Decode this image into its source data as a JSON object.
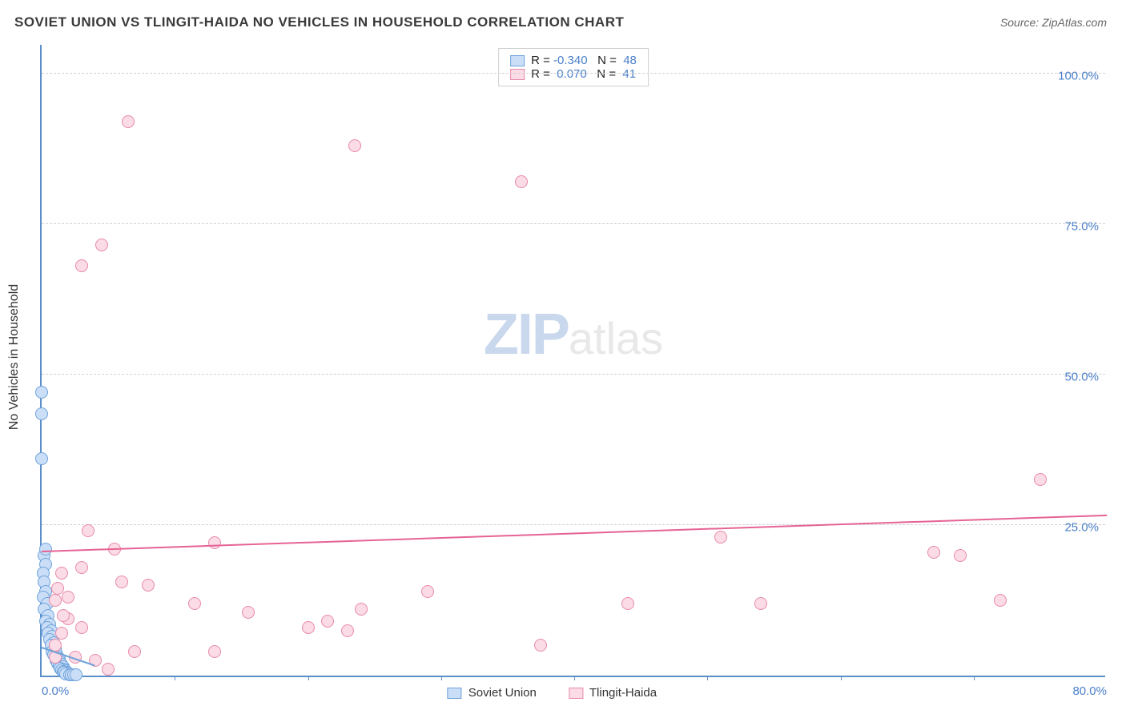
{
  "title": "SOVIET UNION VS TLINGIT-HAIDA NO VEHICLES IN HOUSEHOLD CORRELATION CHART",
  "source": "Source: ZipAtlas.com",
  "ylabel": "No Vehicles in Household",
  "watermark_zip": "ZIP",
  "watermark_atlas": "atlas",
  "chart": {
    "type": "scatter",
    "background_color": "#ffffff",
    "grid_color": "#d0d0d0",
    "axis_color": "#5a8fc9",
    "tick_label_color": "#4a7fc9",
    "xlim": [
      0,
      80
    ],
    "ylim": [
      0,
      105
    ],
    "xtick_labels": [
      "0.0%",
      "80.0%"
    ],
    "xtick_positions": [
      0,
      80
    ],
    "minor_xticks": [
      10,
      20,
      30,
      40,
      50,
      60,
      70
    ],
    "ytick_labels": [
      "25.0%",
      "50.0%",
      "75.0%",
      "100.0%"
    ],
    "ytick_positions": [
      25,
      50,
      75,
      100
    ],
    "marker_radius": 8,
    "series": [
      {
        "name": "Soviet Union",
        "fill": "#cadef7",
        "stroke": "#6fa3db",
        "r_value": "-0.340",
        "n_value": "48",
        "trend": {
          "x1": 0,
          "y1": 4.5,
          "x2": 4,
          "y2": 1.5,
          "color": "#6fa3db"
        },
        "points": [
          [
            0.0,
            47.0
          ],
          [
            0.0,
            43.5
          ],
          [
            0.0,
            36.0
          ],
          [
            0.2,
            20.0
          ],
          [
            0.3,
            18.5
          ],
          [
            0.1,
            17.0
          ],
          [
            0.2,
            15.5
          ],
          [
            0.3,
            14.0
          ],
          [
            0.1,
            13.0
          ],
          [
            0.4,
            12.0
          ],
          [
            0.2,
            11.0
          ],
          [
            0.5,
            10.0
          ],
          [
            0.3,
            9.0
          ],
          [
            0.6,
            8.5
          ],
          [
            0.4,
            8.0
          ],
          [
            0.7,
            7.5
          ],
          [
            0.5,
            7.0
          ],
          [
            0.8,
            6.5
          ],
          [
            0.6,
            6.0
          ],
          [
            0.9,
            5.5
          ],
          [
            0.7,
            5.0
          ],
          [
            1.0,
            4.5
          ],
          [
            0.8,
            4.0
          ],
          [
            1.1,
            3.8
          ],
          [
            0.9,
            3.5
          ],
          [
            1.2,
            3.2
          ],
          [
            1.0,
            3.0
          ],
          [
            1.3,
            2.8
          ],
          [
            1.1,
            2.5
          ],
          [
            1.4,
            2.3
          ],
          [
            1.2,
            2.0
          ],
          [
            1.5,
            1.8
          ],
          [
            1.3,
            1.6
          ],
          [
            1.6,
            1.4
          ],
          [
            1.4,
            1.2
          ],
          [
            1.7,
            1.0
          ],
          [
            1.5,
            0.9
          ],
          [
            1.8,
            0.8
          ],
          [
            1.6,
            0.7
          ],
          [
            1.9,
            0.6
          ],
          [
            1.7,
            0.5
          ],
          [
            2.0,
            0.4
          ],
          [
            1.8,
            0.3
          ],
          [
            2.1,
            0.2
          ],
          [
            2.2,
            0.2
          ],
          [
            2.4,
            0.1
          ],
          [
            2.6,
            0.1
          ],
          [
            0.3,
            21.0
          ]
        ]
      },
      {
        "name": "Tlingit-Haida",
        "fill": "#fbdbe5",
        "stroke": "#e88aa8",
        "r_value": "0.070",
        "n_value": "41",
        "trend": {
          "x1": 0,
          "y1": 20.5,
          "x2": 80,
          "y2": 26.5,
          "color": "#e66395"
        },
        "points": [
          [
            6.5,
            92.0
          ],
          [
            23.5,
            88.0
          ],
          [
            36.0,
            82.0
          ],
          [
            4.5,
            71.5
          ],
          [
            3.0,
            68.0
          ],
          [
            75.0,
            32.5
          ],
          [
            3.5,
            24.0
          ],
          [
            51.0,
            23.0
          ],
          [
            67.0,
            20.5
          ],
          [
            69.0,
            20.0
          ],
          [
            3.0,
            18.0
          ],
          [
            1.5,
            17.0
          ],
          [
            13.0,
            22.0
          ],
          [
            6.0,
            15.5
          ],
          [
            8.0,
            15.0
          ],
          [
            5.5,
            21.0
          ],
          [
            29.0,
            14.0
          ],
          [
            72.0,
            12.5
          ],
          [
            54.0,
            12.0
          ],
          [
            44.0,
            12.0
          ],
          [
            11.5,
            12.0
          ],
          [
            24.0,
            11.0
          ],
          [
            15.5,
            10.5
          ],
          [
            21.5,
            9.0
          ],
          [
            20.0,
            8.0
          ],
          [
            23.0,
            7.5
          ],
          [
            37.5,
            5.0
          ],
          [
            13.0,
            4.0
          ],
          [
            7.0,
            4.0
          ],
          [
            2.0,
            9.5
          ],
          [
            1.0,
            12.5
          ],
          [
            1.5,
            7.0
          ],
          [
            3.0,
            8.0
          ],
          [
            1.0,
            5.0
          ],
          [
            2.5,
            3.0
          ],
          [
            4.0,
            2.5
          ],
          [
            5.0,
            1.0
          ],
          [
            1.2,
            14.5
          ],
          [
            2.0,
            13.0
          ],
          [
            1.6,
            10.0
          ],
          [
            1.0,
            3.0
          ]
        ]
      }
    ]
  },
  "legend_top": {
    "r_label": "R = ",
    "n_label": "N = "
  },
  "legend_bottom": {
    "items": [
      "Soviet Union",
      "Tlingit-Haida"
    ]
  }
}
